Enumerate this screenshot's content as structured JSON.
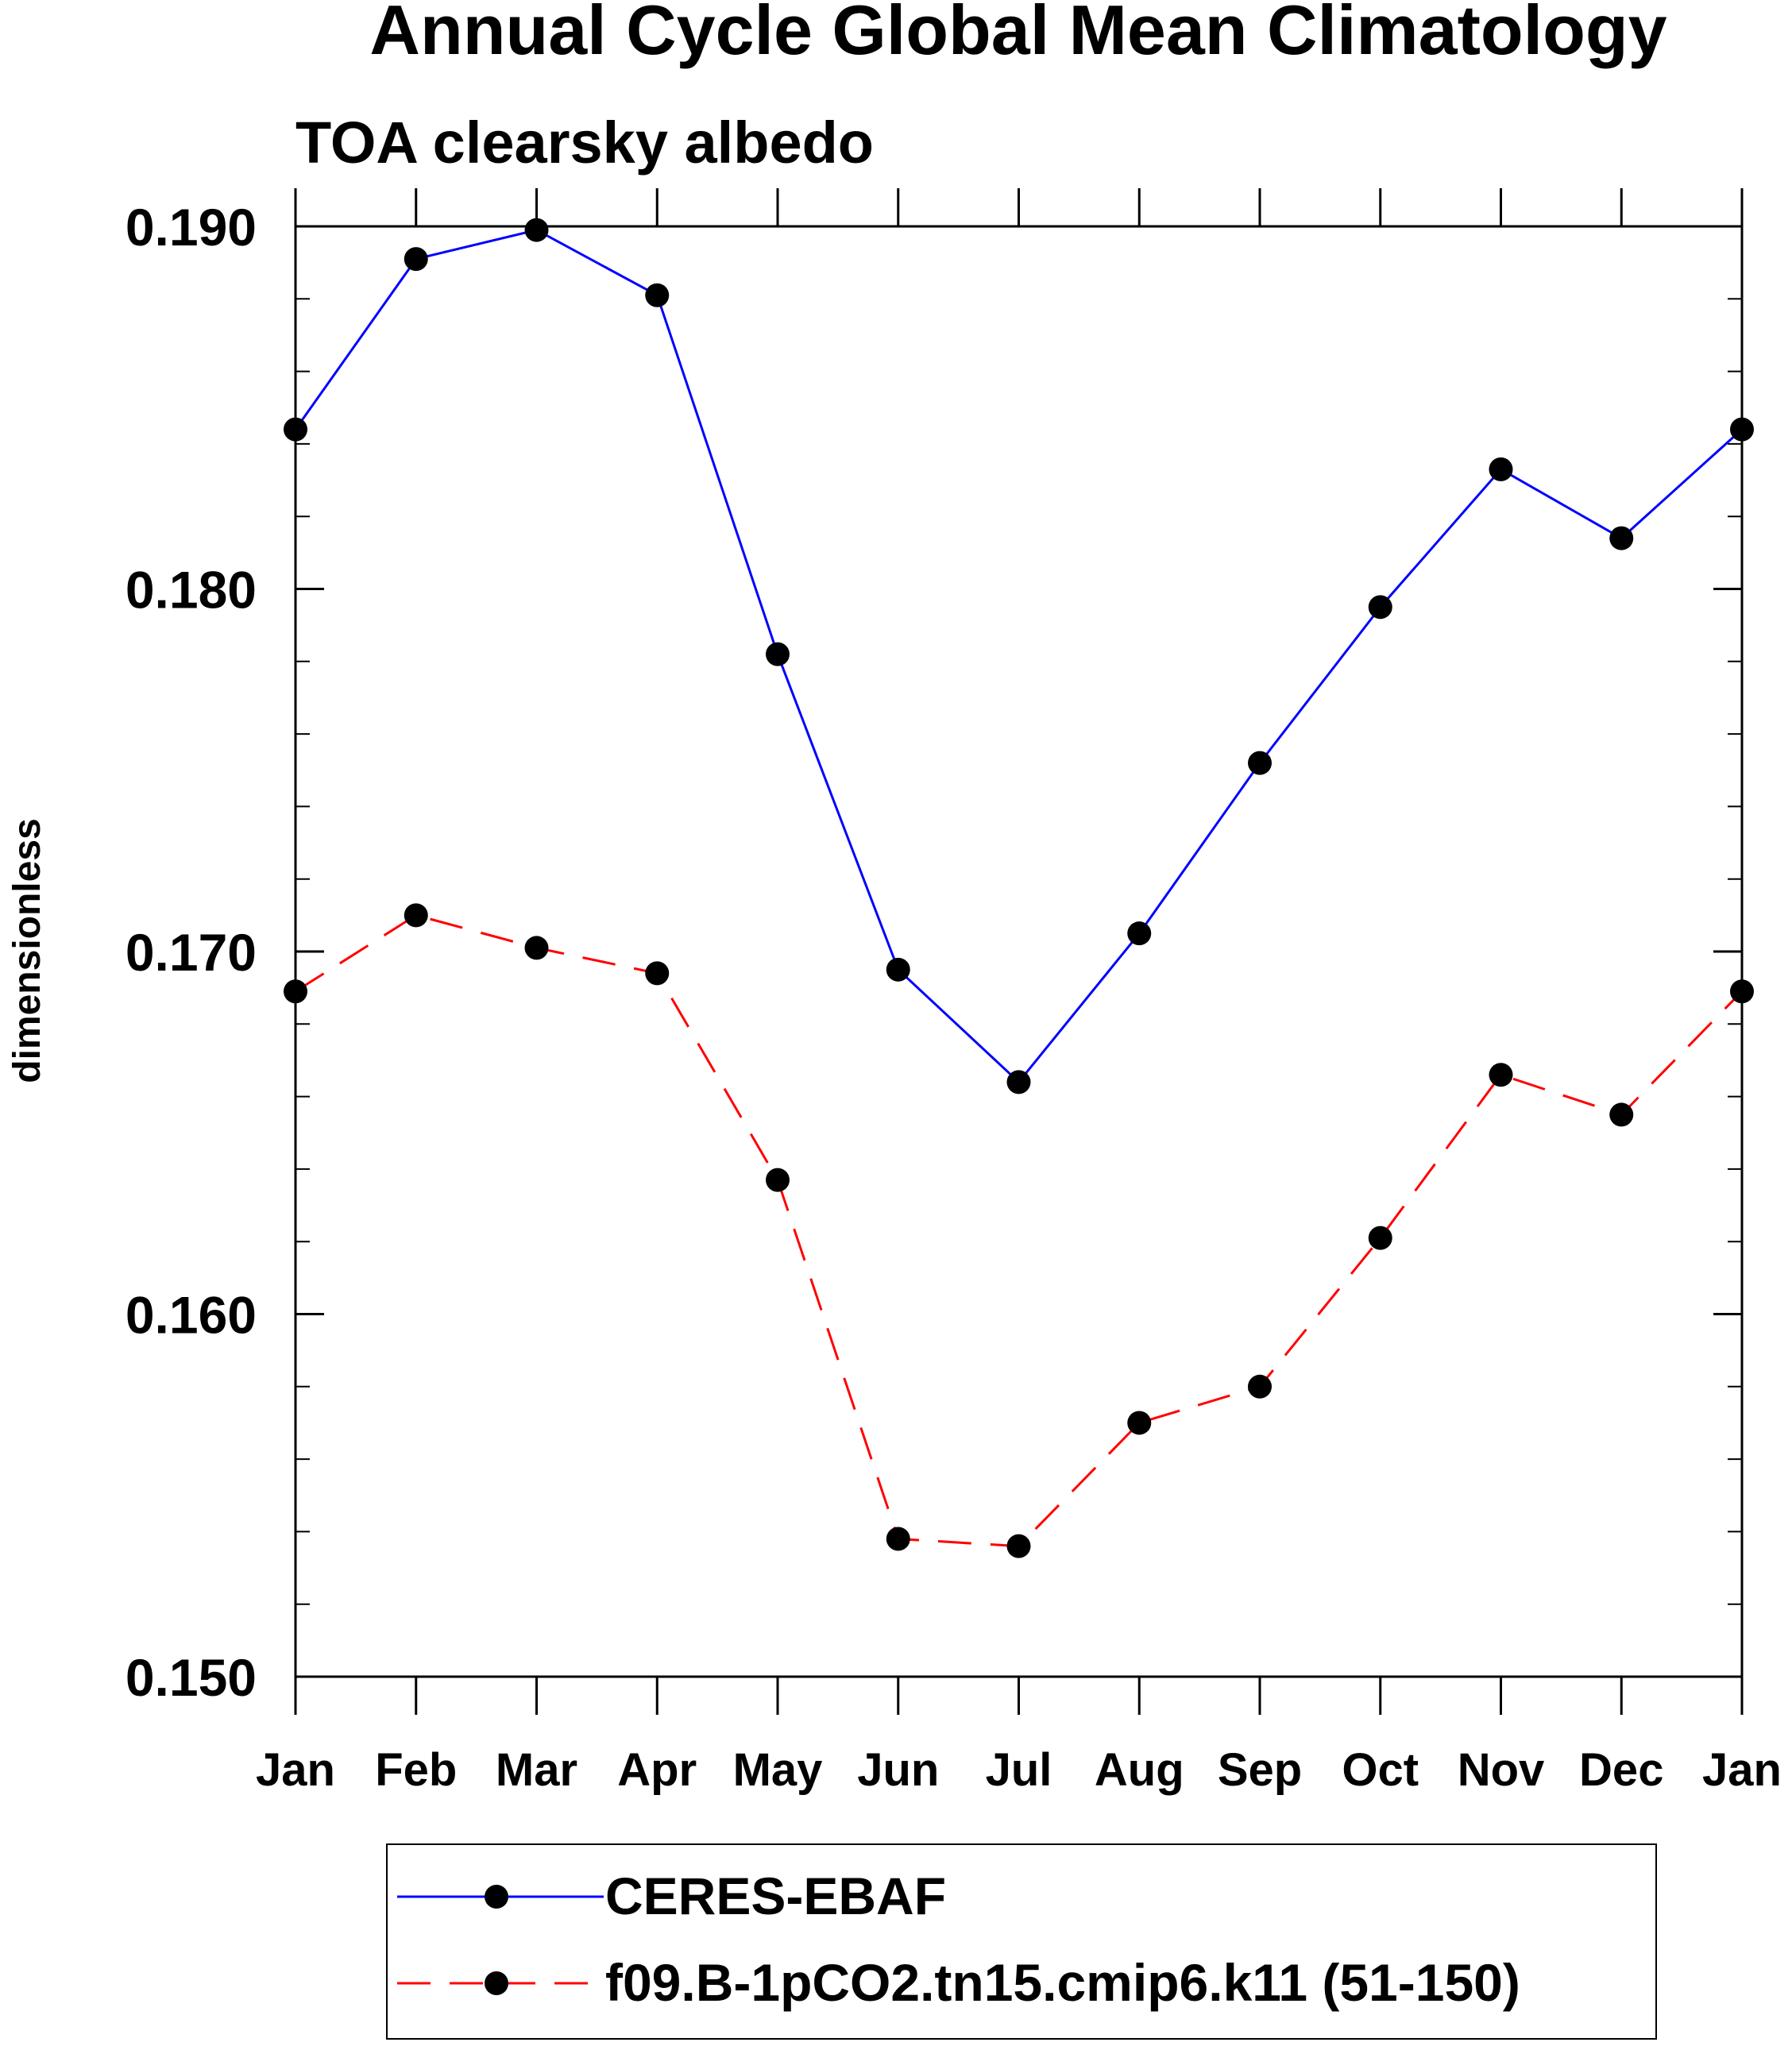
{
  "chart_data": {
    "type": "line",
    "title": "Annual Cycle Global Mean Climatology",
    "subtitle": "TOA clearsky albedo",
    "xlabel": "",
    "ylabel": "dimensionless",
    "categories": [
      "Jan",
      "Feb",
      "Mar",
      "Apr",
      "May",
      "Jun",
      "Jul",
      "Aug",
      "Sep",
      "Oct",
      "Nov",
      "Dec",
      "Jan"
    ],
    "ylim": [
      0.15,
      0.19
    ],
    "y_major_ticks": [
      0.15,
      0.16,
      0.17,
      0.18,
      0.19
    ],
    "y_tick_labels": [
      "0.150",
      "0.160",
      "0.170",
      "0.180",
      "0.190"
    ],
    "y_minor_step": 0.002,
    "grid": false,
    "legend_position": "bottom",
    "series": [
      {
        "name": "CERES-EBAF",
        "color": "#0000ff",
        "line_style": "solid",
        "marker": "circle",
        "values": [
          0.1844,
          0.1891,
          0.1899,
          0.1881,
          0.1782,
          0.1695,
          0.1664,
          0.1705,
          0.1752,
          0.1795,
          0.1833,
          0.1814,
          0.1844
        ]
      },
      {
        "name": "f09.B-1pCO2.tn15.cmip6.k11 (51-150)",
        "color": "#ff0000",
        "line_style": "dashed",
        "marker": "circle",
        "values": [
          0.1689,
          0.171,
          0.1701,
          0.1694,
          0.1637,
          0.1538,
          0.1536,
          0.157,
          0.158,
          0.1621,
          0.1666,
          0.1655,
          0.1689
        ]
      }
    ]
  }
}
